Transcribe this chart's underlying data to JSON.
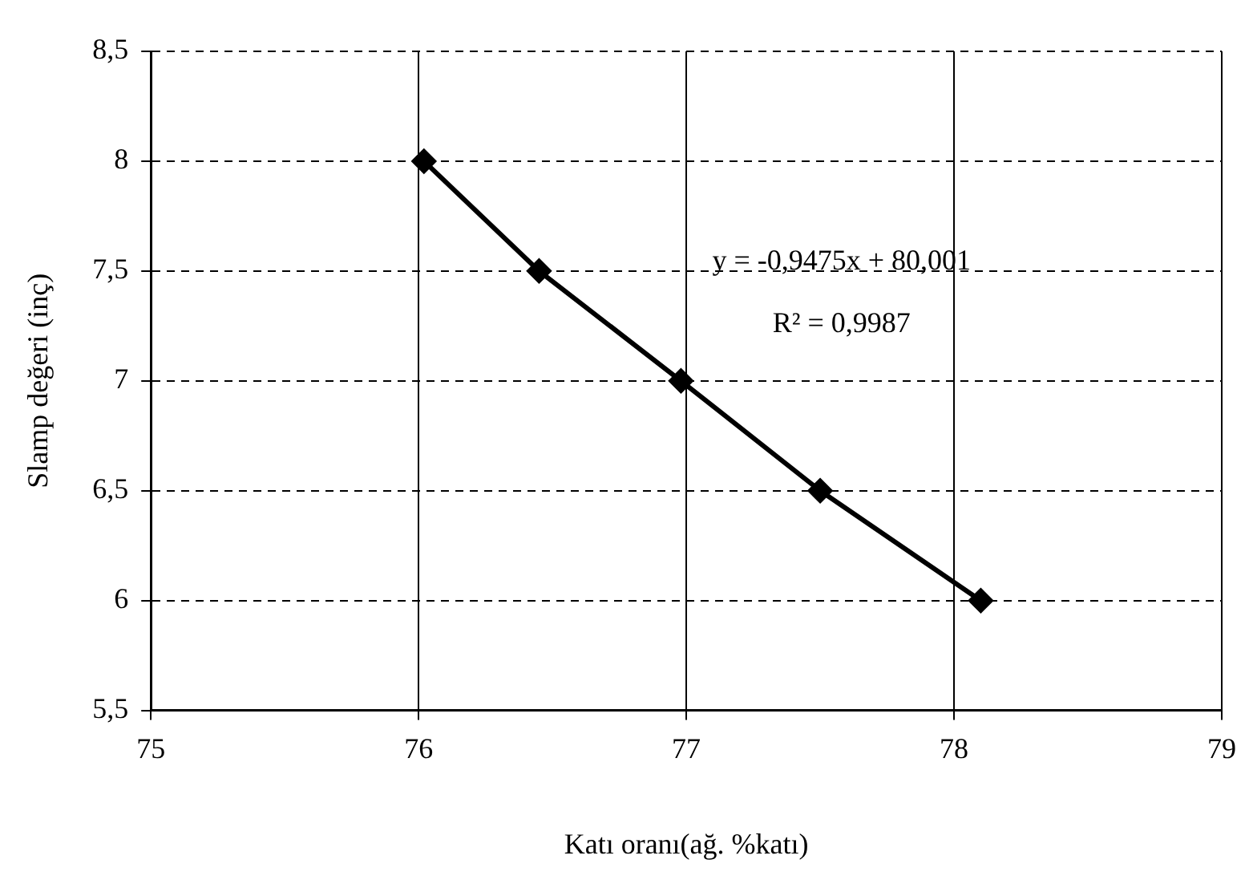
{
  "chart_data": {
    "type": "line",
    "xlabel": "Katı oranı(ağ. %katı)",
    "ylabel": "Slamp değeri (inç)",
    "x": [
      76.02,
      76.45,
      76.98,
      77.5,
      78.1
    ],
    "series": [
      {
        "color": "#000000",
        "values": [
          8,
          7.5,
          7,
          6.5,
          6
        ]
      }
    ],
    "xlim": [
      75,
      79
    ],
    "xticks": [
      75,
      76,
      77,
      78,
      79
    ],
    "ylim": [
      5.5,
      8.5
    ],
    "yticks": [
      {
        "value": 5.5,
        "label": "5,5"
      },
      6,
      {
        "value": 6.5,
        "label": "6,5"
      },
      7,
      {
        "value": 7.5,
        "label": "7,5"
      },
      8,
      {
        "value": 8.5,
        "label": "8,5"
      }
    ],
    "grid": true,
    "marker": "diamond",
    "line_style": "solid",
    "legend": false,
    "annotations": [
      "y = -0,9475x + 80,001",
      "R² = 0,9987"
    ]
  }
}
